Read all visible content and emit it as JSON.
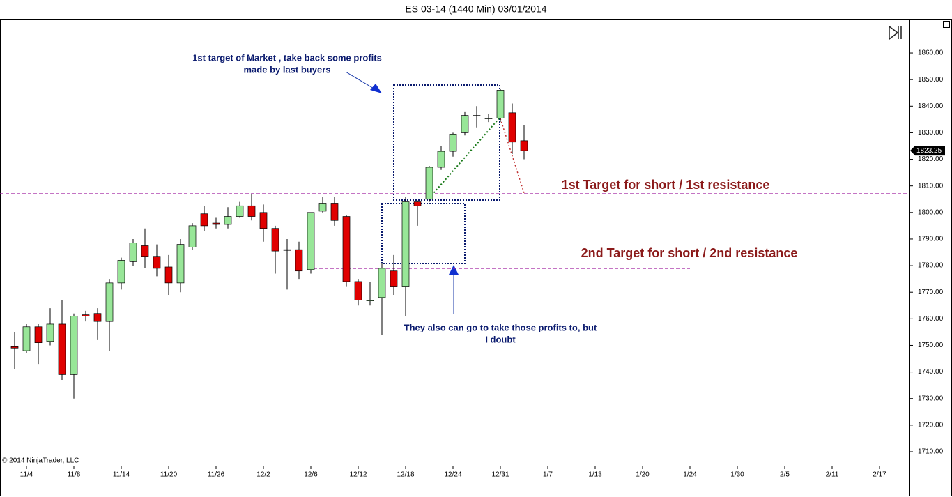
{
  "chart_data": {
    "type": "candlestick",
    "title": "ES 03-14 (1440 Min)  03/01/2014",
    "copyright": "© 2014 NinjaTrader, LLC",
    "categories": [
      null,
      "11/4",
      null,
      null,
      null,
      "11/8",
      null,
      null,
      null,
      "11/14",
      null,
      null,
      null,
      "11/20",
      null,
      null,
      null,
      "11/26",
      null,
      null,
      null,
      "12/2",
      null,
      null,
      null,
      "12/6",
      null,
      null,
      null,
      "12/12",
      null,
      null,
      null,
      "12/18",
      null,
      null,
      null,
      "12/24",
      null,
      null,
      null,
      "12/31",
      null,
      null,
      null,
      "1/7",
      null,
      null,
      null,
      "1/13",
      null,
      null,
      null,
      "1/20",
      null,
      null,
      null,
      "1/24",
      null,
      null,
      null,
      "1/30",
      null,
      null,
      null,
      "2/5",
      null,
      null,
      null,
      "2/11",
      null,
      null,
      null,
      "2/17",
      null,
      null
    ],
    "open": [
      1749.5,
      1748,
      1757,
      1751.5,
      1758,
      1739,
      1761.5,
      1762,
      1759,
      1773.5,
      1781.5,
      1787.5,
      1783.5,
      1779.5,
      1773.5,
      1787,
      1799.5,
      1796,
      1795.5,
      1798.5,
      1802.5,
      1800,
      1794,
      1786,
      1786,
      1778.5,
      1800.5,
      1803.5,
      1798.5,
      1774,
      1767,
      1768,
      1778,
      1772,
      1804,
      1805,
      1817,
      1823,
      1830,
      1836.5,
      1835.5,
      1835.5,
      1837.5,
      1827,
      null,
      null,
      null,
      null,
      null,
      null,
      null,
      null,
      null,
      null,
      null,
      null,
      null,
      null,
      null,
      null,
      null,
      null,
      null,
      null,
      null,
      null,
      null,
      null,
      null,
      null,
      null,
      null,
      null,
      null,
      null,
      null
    ],
    "high": [
      1755,
      1758,
      1758,
      1764,
      1767,
      1762,
      1763,
      1764,
      1775,
      1783,
      1790,
      1794,
      1788,
      1784,
      1790,
      1796,
      1802.5,
      1798,
      1802,
      1804,
      1807,
      1803,
      1795,
      1790,
      1789,
      1800,
      1806,
      1806,
      1799,
      1775,
      1774,
      1781,
      1784,
      1806,
      1804.5,
      1817.5,
      1825,
      1830,
      1838,
      1840,
      1837,
      1846.5,
      1841,
      1833,
      null,
      null,
      null,
      null,
      null,
      null,
      null,
      null,
      null,
      null,
      null,
      null,
      null,
      null,
      null,
      null,
      null,
      null,
      null,
      null,
      null,
      null,
      null,
      null,
      null,
      null,
      null,
      null,
      null,
      null,
      null,
      null
    ],
    "low": [
      1741,
      1747,
      1743,
      1750,
      1737,
      1730,
      1759,
      1752,
      1748,
      1771,
      1780,
      1779,
      1776,
      1769,
      1770,
      1786,
      1793,
      1794,
      1794,
      1798,
      1797,
      1789,
      1777,
      1771,
      1775,
      1777,
      1800,
      1795,
      1772,
      1765,
      1765,
      1754,
      1769,
      1761,
      1795,
      1804,
      1816,
      1821,
      1829,
      1832,
      1834,
      1834,
      1822,
      1820,
      null,
      null,
      null,
      null,
      null,
      null,
      null,
      null,
      null,
      null,
      null,
      null,
      null,
      null,
      null,
      null,
      null,
      null,
      null,
      null,
      null,
      null,
      null,
      null,
      null,
      null,
      null,
      null,
      null,
      null,
      null,
      null
    ],
    "close": [
      1749,
      1757,
      1751,
      1758,
      1739,
      1761,
      1761,
      1759,
      1773.5,
      1782,
      1788.5,
      1783.5,
      1779,
      1773.5,
      1788,
      1795,
      1795,
      1795.5,
      1798.5,
      1802.5,
      1798.5,
      1794,
      1785.5,
      1786,
      1778,
      1800,
      1803.5,
      1797,
      1774,
      1767,
      1767,
      1779,
      1772,
      1804,
      1802.5,
      1817,
      1823,
      1829.5,
      1836.5,
      1836.5,
      1835.5,
      1846,
      1826.5,
      1823.25,
      null,
      null,
      null,
      null,
      null,
      null,
      null,
      null,
      null,
      null,
      null,
      null,
      null,
      null,
      null,
      null,
      null,
      null,
      null,
      null,
      null,
      null,
      null,
      null,
      null,
      null,
      null,
      null,
      null,
      null,
      null,
      null
    ],
    "up_color": "#98e698",
    "down_color": "#e00000",
    "ylim": [
      1704.75,
      1872.6
    ],
    "yticks": [
      {
        "value": 1710,
        "label": "1710.00"
      },
      {
        "value": 1720,
        "label": "1720.00"
      },
      {
        "value": 1730,
        "label": "1730.00"
      },
      {
        "value": 1740,
        "label": "1740.00"
      },
      {
        "value": 1750,
        "label": "1750.00"
      },
      {
        "value": 1760,
        "label": "1760.00"
      },
      {
        "value": 1770,
        "label": "1770.00"
      },
      {
        "value": 1780,
        "label": "1780.00"
      },
      {
        "value": 1790,
        "label": "1790.00"
      },
      {
        "value": 1800,
        "label": "1800.00"
      },
      {
        "value": 1810,
        "label": "1810.00"
      },
      {
        "value": 1820,
        "label": "1820.00"
      },
      {
        "value": 1830,
        "label": "1830.00"
      },
      {
        "value": 1840,
        "label": "1840.00"
      },
      {
        "value": 1850,
        "label": "1850.00"
      },
      {
        "value": 1860,
        "label": "1860.00"
      }
    ],
    "levels": [
      1807,
      1779
    ],
    "annotations": {
      "target_market": [
        "1st target of Market , take back some profits",
        "made by last buyers"
      ],
      "doubt": [
        "They also can go to take those profits to, but",
        "I doubt"
      ],
      "resistance1": "1st Target for short / 1st resistance",
      "resistance2": "2nd Target for short / 2nd resistance"
    }
  }
}
